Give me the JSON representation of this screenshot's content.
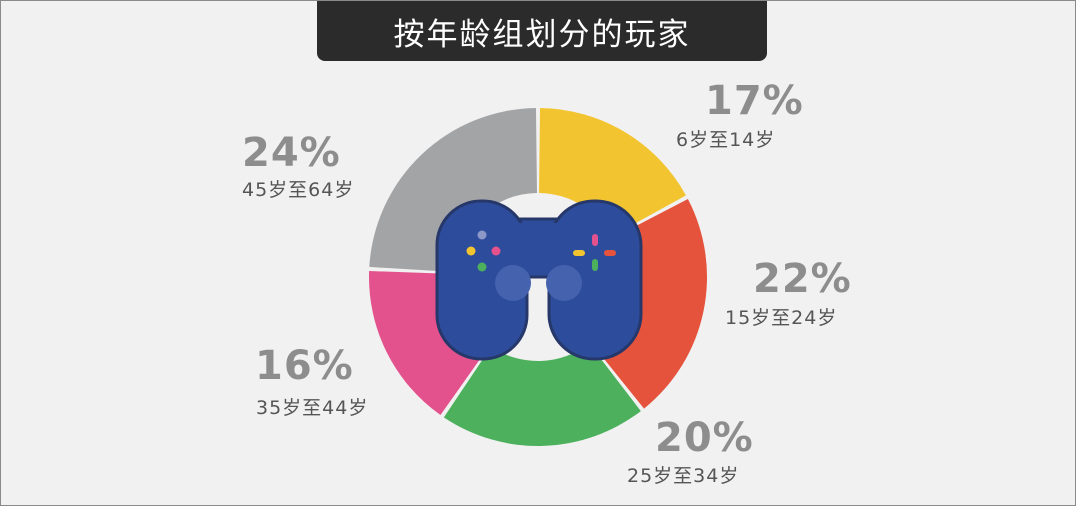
{
  "title": "按年龄组划分的玩家",
  "chart_data": {
    "type": "pie",
    "title": "按年龄组划分的玩家",
    "slices": [
      {
        "label": "6岁至14岁",
        "value": 17,
        "value_label": "17%",
        "color": "#f2c530"
      },
      {
        "label": "15岁至24岁",
        "value": 22,
        "value_label": "22%",
        "color": "#e6533c"
      },
      {
        "label": "25岁至34岁",
        "value": 20,
        "value_label": "20%",
        "color": "#4cb05c"
      },
      {
        "label": "35岁至44岁",
        "value": 16,
        "value_label": "16%",
        "color": "#e4528e"
      },
      {
        "label": "45岁至64岁",
        "value": 24,
        "value_label": "24%",
        "color": "#a3a4a6"
      }
    ],
    "center_icon": "gamepad-icon",
    "controller_color": "#2e4c9c"
  }
}
